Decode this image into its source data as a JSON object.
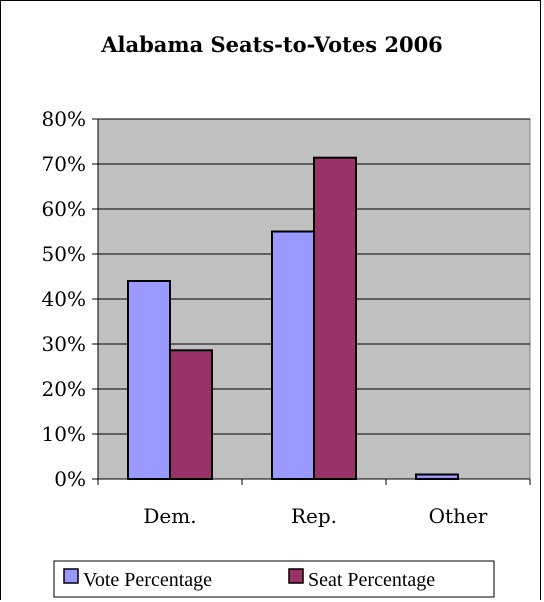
{
  "chart_data": {
    "type": "bar",
    "title": "Alabama Seats-to-Votes 2006",
    "categories": [
      "Dem.",
      "Rep.",
      "Other"
    ],
    "series": [
      {
        "name": "Vote Percentage",
        "values": [
          44.0,
          55.0,
          1.0
        ],
        "color": "#9999ff"
      },
      {
        "name": "Seat Percentage",
        "values": [
          28.6,
          71.4,
          0.0
        ],
        "color": "#993366"
      }
    ],
    "ylim": [
      0,
      80
    ],
    "yticks": [
      "0%",
      "10%",
      "20%",
      "30%",
      "40%",
      "50%",
      "60%",
      "70%",
      "80%"
    ],
    "plot_background": "#c0c0c0",
    "grid": true,
    "legend_position": "bottom"
  }
}
